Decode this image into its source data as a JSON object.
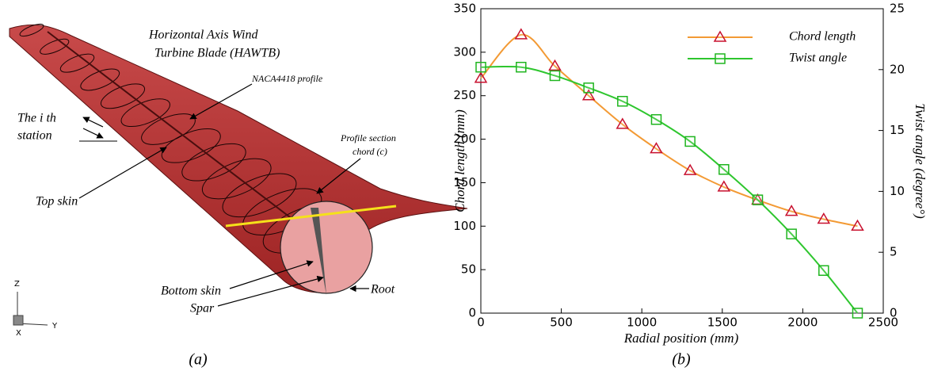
{
  "diagram": {
    "title_lines": [
      "Horizontal Axis Wind",
      "Turbine Blade (HAWTB)"
    ],
    "profile": "NACA4418  profile",
    "station_lines": [
      "The i th",
      "station"
    ],
    "chord_lines": [
      "Profile section",
      "chord (c)"
    ],
    "top_skin": "Top skin",
    "bottom_skin": "Bottom skin",
    "spar": "Spar",
    "root": "Root",
    "axes": {
      "z": "Z",
      "y": "Y",
      "x": "X"
    },
    "caption": "(a)"
  },
  "chart_data": {
    "type": "line",
    "caption": "(b)",
    "x_label": "Radial position (mm)",
    "y_label": "Chord length (mm)",
    "y2_label": "Twist angle (degree°)",
    "x": [
      0,
      250,
      460,
      670,
      880,
      1090,
      1300,
      1510,
      1720,
      1930,
      2130,
      2340
    ],
    "series": [
      {
        "name": "Chord length",
        "color": "#f39a34",
        "marker": "triangle",
        "marker_color": "#c8102e",
        "values": [
          270,
          320,
          284,
          250,
          217,
          189,
          164,
          145,
          130,
          117,
          108,
          100
        ]
      },
      {
        "name": "Twist angle",
        "color": "#2ec62e",
        "marker": "square",
        "marker_color": "#1fb51f",
        "axis": "y2",
        "values": [
          20.2,
          20.2,
          19.5,
          18.5,
          17.4,
          15.9,
          14.1,
          11.8,
          9.3,
          6.5,
          3.5,
          0
        ]
      }
    ],
    "xlim": [
      0,
      2500
    ],
    "xticks": [
      0,
      500,
      1000,
      1500,
      2000,
      2500
    ],
    "ylim": [
      0,
      350
    ],
    "yticks": [
      0,
      50,
      100,
      150,
      200,
      250,
      300,
      350
    ],
    "y2lim": [
      0,
      25
    ],
    "y2ticks": [
      0,
      5,
      10,
      15,
      20,
      25
    ],
    "legend": "upper-right"
  }
}
